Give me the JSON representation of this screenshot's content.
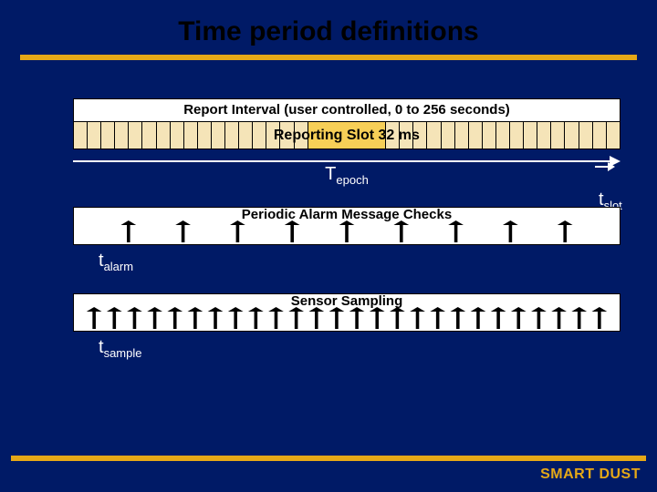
{
  "colors": {
    "background": "#001a66",
    "accent": "#e6a817",
    "box_fill": "#ffffff",
    "slot_fill": "#f5e4b8",
    "text_dark": "#000000",
    "text_light": "#ffffff"
  },
  "title": "Time period definitions",
  "title_fontsize": 30,
  "report_interval": {
    "caption": "Report Interval (user controlled, 0 to 256 seconds)",
    "caption_fontsize": 15,
    "slot_count": 40,
    "highlight_wide_slots": 6,
    "highlight_label": "Reporting Slot   32 ms",
    "highlight_fontsize": 16,
    "highlight_fill": "#f7cf57"
  },
  "t_epoch": {
    "base": "T",
    "sub": "epoch"
  },
  "t_slot": {
    "base": "t",
    "sub": "slot"
  },
  "alarm_box": {
    "caption": "Periodic Alarm Message Checks",
    "caption_fontsize": 15,
    "tick_count": 9,
    "tick_color": "#000000"
  },
  "t_alarm": {
    "base": "t",
    "sub": "alarm"
  },
  "sample_box": {
    "caption": "Sensor Sampling",
    "caption_fontsize": 15,
    "tick_count": 26,
    "tick_color": "#000000"
  },
  "t_sample": {
    "base": "t",
    "sub": "sample"
  },
  "brand": "SMART DUST"
}
